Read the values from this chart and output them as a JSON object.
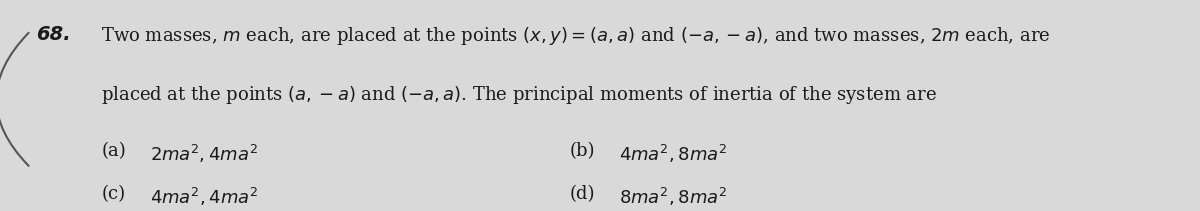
{
  "question_number": "68.",
  "line1": "Two masses, $m$ each, are placed at the points $(x, y) = (a, a)$ and $(-a, -a)$, and two masses, $2m$ each, are",
  "line2": "placed at the points $(a, -a)$ and $(-a, a)$. The principal moments of inertia of the system are",
  "opt_a_label": "(a)",
  "opt_a_text": "$2ma^2, 4ma^2$",
  "opt_b_label": "(b)",
  "opt_b_text": "$4ma^2, 8ma^2$",
  "opt_c_label": "(c)",
  "opt_c_text": "$4ma^2, 4ma^2$",
  "opt_d_label": "(d)",
  "opt_d_text": "$8ma^2, 8ma^2$",
  "bg_color": "#d9d9d9",
  "text_color": "#1a1a1a",
  "font_size_body": 13,
  "font_size_options": 13,
  "font_size_qnum": 14
}
